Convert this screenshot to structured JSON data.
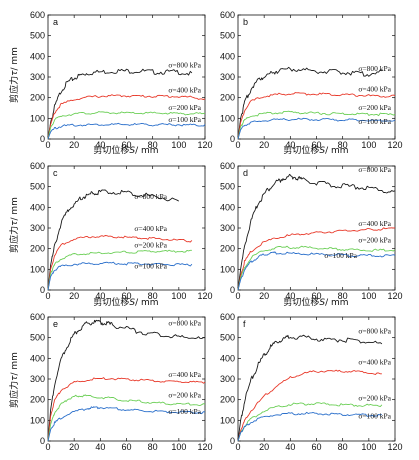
{
  "figure": {
    "ylabel_prefix": "剪应力",
    "ylabel_symbol": "τ",
    "ylabel_unit": "/ mm",
    "xlabel_prefix": "剪切位移",
    "xlabel_symbol": "S",
    "xlabel_unit": "/ mm"
  },
  "colors": {
    "800": "#1a1a1a",
    "400": "#e8392a",
    "200": "#6ccf57",
    "100": "#2a6fcb"
  },
  "chart_data": [
    {
      "type": "line",
      "panel": "a",
      "xlim": [
        0,
        120
      ],
      "ylim": [
        0,
        600
      ],
      "xticks": [
        "0",
        "20",
        "40",
        "60",
        "80",
        "100",
        "120"
      ],
      "yticks": [
        "0",
        "100",
        "200",
        "300",
        "400",
        "500",
        "600"
      ],
      "series": [
        {
          "name": "σ=800 kPa",
          "level": "800",
          "x": [
            0,
            2,
            5,
            10,
            15,
            20,
            25,
            30,
            40,
            50,
            60,
            70,
            80,
            90,
            100,
            110
          ],
          "y": [
            0,
            80,
            160,
            240,
            280,
            300,
            315,
            325,
            330,
            335,
            335,
            335,
            330,
            330,
            330,
            320
          ]
        },
        {
          "name": "σ=400 kPa",
          "level": "400",
          "x": [
            0,
            2,
            5,
            10,
            20,
            30,
            40,
            50,
            60,
            70,
            80,
            90,
            100,
            110,
            120
          ],
          "y": [
            0,
            70,
            130,
            170,
            195,
            205,
            210,
            212,
            212,
            210,
            210,
            210,
            208,
            205,
            195
          ]
        },
        {
          "name": "σ=200 kPa",
          "level": "200",
          "x": [
            0,
            2,
            5,
            10,
            20,
            30,
            40,
            50,
            60,
            70,
            80,
            90,
            100,
            110,
            120
          ],
          "y": [
            0,
            55,
            95,
            115,
            125,
            128,
            130,
            130,
            128,
            128,
            128,
            128,
            126,
            125,
            125
          ]
        },
        {
          "name": "σ=100 kPa",
          "level": "100",
          "x": [
            0,
            2,
            5,
            10,
            20,
            30,
            40,
            50,
            60,
            70,
            80,
            90,
            100,
            110,
            120
          ],
          "y": [
            0,
            35,
            55,
            65,
            70,
            72,
            73,
            73,
            73,
            73,
            72,
            72,
            72,
            70,
            70
          ]
        }
      ],
      "annotations": [
        "σ=800 kPa",
        "σ=400 kPa",
        "σ=200 kPa",
        "σ=100 kPa"
      ]
    },
    {
      "type": "line",
      "panel": "b",
      "xlim": [
        0,
        120
      ],
      "ylim": [
        0,
        600
      ],
      "xticks": [
        "0",
        "20",
        "40",
        "60",
        "80",
        "100",
        "120"
      ],
      "yticks": [
        "0",
        "100",
        "200",
        "300",
        "400",
        "500",
        "600"
      ],
      "series": [
        {
          "name": "σ=800 kPa",
          "level": "800",
          "x": [
            0,
            2,
            5,
            10,
            15,
            20,
            25,
            30,
            40,
            50,
            60,
            70,
            80,
            90,
            100,
            110
          ],
          "y": [
            0,
            100,
            180,
            250,
            290,
            310,
            325,
            335,
            345,
            340,
            335,
            330,
            330,
            325,
            320,
            330
          ]
        },
        {
          "name": "σ=400 kPa",
          "level": "400",
          "x": [
            0,
            2,
            5,
            10,
            20,
            30,
            40,
            50,
            60,
            70,
            80,
            90,
            100,
            110,
            120
          ],
          "y": [
            0,
            80,
            140,
            185,
            210,
            218,
            222,
            222,
            220,
            220,
            218,
            215,
            212,
            210,
            210
          ]
        },
        {
          "name": "σ=200 kPa",
          "level": "200",
          "x": [
            0,
            2,
            5,
            10,
            20,
            30,
            40,
            50,
            60,
            70,
            80,
            90,
            100,
            110,
            120
          ],
          "y": [
            0,
            60,
            95,
            115,
            125,
            130,
            132,
            130,
            128,
            126,
            125,
            124,
            123,
            122,
            120
          ]
        },
        {
          "name": "σ=100 kPa",
          "level": "100",
          "x": [
            0,
            2,
            5,
            10,
            20,
            30,
            40,
            50,
            60,
            70,
            80,
            90,
            100,
            110,
            120
          ],
          "y": [
            0,
            45,
            70,
            82,
            92,
            96,
            98,
            98,
            97,
            96,
            95,
            95,
            94,
            93,
            92
          ]
        }
      ],
      "annotations": [
        "σ=800 kPa",
        "σ=400 kPa",
        "σ=200 kPa",
        "σ=100 kPa"
      ]
    },
    {
      "type": "line",
      "panel": "c",
      "xlim": [
        0,
        120
      ],
      "ylim": [
        0,
        600
      ],
      "xticks": [
        "0",
        "20",
        "40",
        "60",
        "80",
        "100",
        "120"
      ],
      "yticks": [
        "0",
        "100",
        "200",
        "300",
        "400",
        "500",
        "600"
      ],
      "series": [
        {
          "name": "σ=800 kPa",
          "level": "800",
          "x": [
            0,
            2,
            5,
            10,
            15,
            20,
            25,
            30,
            35,
            40,
            50,
            60,
            70,
            80,
            90,
            100
          ],
          "y": [
            0,
            120,
            220,
            330,
            390,
            420,
            450,
            465,
            475,
            480,
            480,
            475,
            470,
            460,
            450,
            430
          ]
        },
        {
          "name": "σ=400 kPa",
          "level": "400",
          "x": [
            0,
            2,
            5,
            10,
            20,
            30,
            40,
            50,
            60,
            70,
            80,
            90,
            100,
            110
          ],
          "y": [
            0,
            100,
            170,
            220,
            250,
            260,
            262,
            262,
            258,
            255,
            252,
            248,
            242,
            240
          ]
        },
        {
          "name": "σ=200 kPa",
          "level": "200",
          "x": [
            0,
            2,
            5,
            10,
            20,
            30,
            40,
            50,
            60,
            70,
            80,
            90,
            100,
            110
          ],
          "y": [
            0,
            80,
            125,
            155,
            175,
            180,
            182,
            185,
            185,
            188,
            190,
            190,
            190,
            192
          ]
        },
        {
          "name": "σ=100 kPa",
          "level": "100",
          "x": [
            0,
            2,
            5,
            10,
            20,
            30,
            40,
            50,
            60,
            70,
            80,
            90,
            100,
            110
          ],
          "y": [
            0,
            65,
            100,
            118,
            128,
            130,
            132,
            132,
            130,
            130,
            128,
            128,
            126,
            125
          ]
        }
      ],
      "annotations": [
        "σ=800 kPa",
        "σ=400 kPa",
        "σ=200 kPa",
        "σ=100 kPa"
      ]
    },
    {
      "type": "line",
      "panel": "d",
      "xlim": [
        0,
        120
      ],
      "ylim": [
        0,
        600
      ],
      "xticks": [
        "0",
        "20",
        "40",
        "60",
        "80",
        "100",
        "120"
      ],
      "yticks": [
        "0",
        "100",
        "200",
        "300",
        "400",
        "500",
        "600"
      ],
      "series": [
        {
          "name": "σ=800 kPa",
          "level": "800",
          "x": [
            0,
            2,
            5,
            10,
            15,
            20,
            25,
            30,
            35,
            40,
            45,
            50,
            60,
            70,
            80,
            90,
            100,
            110,
            120
          ],
          "y": [
            0,
            100,
            220,
            340,
            420,
            470,
            505,
            530,
            548,
            555,
            550,
            540,
            525,
            515,
            510,
            505,
            500,
            490,
            480
          ]
        },
        {
          "name": "σ=400 kPa",
          "level": "400",
          "x": [
            0,
            2,
            5,
            10,
            20,
            30,
            40,
            50,
            60,
            70,
            80,
            90,
            100,
            110,
            120
          ],
          "y": [
            0,
            70,
            140,
            190,
            235,
            255,
            268,
            275,
            280,
            285,
            290,
            292,
            295,
            298,
            300
          ]
        },
        {
          "name": "σ=200 kPa",
          "level": "200",
          "x": [
            0,
            2,
            5,
            10,
            20,
            30,
            40,
            50,
            60,
            70,
            80,
            90,
            100,
            110,
            120
          ],
          "y": [
            0,
            60,
            110,
            160,
            195,
            208,
            210,
            210,
            205,
            202,
            200,
            198,
            195,
            195,
            195
          ]
        },
        {
          "name": "σ=100 kPa",
          "level": "100",
          "x": [
            0,
            2,
            5,
            10,
            15,
            20,
            25,
            30,
            40,
            50,
            60,
            70,
            80,
            90,
            100,
            110,
            120
          ],
          "y": [
            0,
            50,
            100,
            140,
            160,
            175,
            182,
            182,
            180,
            178,
            175,
            175,
            172,
            170,
            170,
            168,
            168
          ]
        }
      ],
      "annotations": [
        "σ=800 kPa",
        "σ=400 kPa",
        "σ=200 kPa",
        "σ=100 kPa"
      ]
    },
    {
      "type": "line",
      "panel": "e",
      "xlim": [
        0,
        120
      ],
      "ylim": [
        0,
        600
      ],
      "xticks": [
        "0",
        "20",
        "40",
        "60",
        "80",
        "100",
        "120"
      ],
      "yticks": [
        "0",
        "100",
        "200",
        "300",
        "400",
        "500",
        "600"
      ],
      "series": [
        {
          "name": "σ=800 kPa",
          "level": "800",
          "x": [
            0,
            2,
            5,
            10,
            15,
            20,
            25,
            30,
            35,
            40,
            45,
            50,
            60,
            70,
            80,
            90,
            100,
            110,
            120
          ],
          "y": [
            0,
            150,
            280,
            400,
            470,
            520,
            555,
            575,
            580,
            580,
            575,
            565,
            550,
            535,
            525,
            515,
            510,
            505,
            500
          ]
        },
        {
          "name": "σ=400 kPa",
          "level": "400",
          "x": [
            0,
            2,
            5,
            10,
            20,
            30,
            40,
            50,
            60,
            70,
            80,
            90,
            100,
            110,
            120
          ],
          "y": [
            0,
            120,
            200,
            250,
            285,
            300,
            305,
            305,
            300,
            298,
            295,
            292,
            290,
            288,
            285
          ]
        },
        {
          "name": "σ=200 kPa",
          "level": "200",
          "x": [
            0,
            2,
            5,
            10,
            15,
            20,
            25,
            30,
            40,
            50,
            60,
            70,
            80,
            90,
            100,
            110,
            120
          ],
          "y": [
            0,
            80,
            140,
            180,
            205,
            218,
            222,
            222,
            215,
            208,
            200,
            195,
            188,
            185,
            182,
            180,
            178
          ]
        },
        {
          "name": "σ=100 kPa",
          "level": "100",
          "x": [
            0,
            2,
            5,
            10,
            20,
            30,
            35,
            40,
            50,
            60,
            70,
            80,
            90,
            100,
            110,
            120
          ],
          "y": [
            0,
            55,
            90,
            115,
            145,
            160,
            165,
            165,
            160,
            155,
            150,
            148,
            145,
            143,
            142,
            140
          ]
        }
      ],
      "annotations": [
        "σ=800 kPa",
        "σ=400 kPa",
        "σ=200 kPa",
        "σ=100 kPa"
      ]
    },
    {
      "type": "line",
      "panel": "f",
      "xlim": [
        0,
        120
      ],
      "ylim": [
        0,
        600
      ],
      "xticks": [
        "0",
        "20",
        "40",
        "60",
        "80",
        "100",
        "120"
      ],
      "yticks": [
        "0",
        "100",
        "200",
        "300",
        "400",
        "500",
        "600"
      ],
      "series": [
        {
          "name": "σ=800 kPa",
          "level": "800",
          "x": [
            0,
            2,
            5,
            10,
            15,
            20,
            25,
            30,
            35,
            40,
            50,
            60,
            70,
            80,
            90,
            100,
            110
          ],
          "y": [
            0,
            100,
            200,
            300,
            370,
            420,
            460,
            485,
            500,
            510,
            510,
            500,
            495,
            495,
            490,
            485,
            470
          ]
        },
        {
          "name": "σ=400 kPa",
          "level": "400",
          "x": [
            0,
            2,
            5,
            10,
            20,
            30,
            40,
            50,
            60,
            70,
            80,
            90,
            100,
            110
          ],
          "y": [
            0,
            50,
            100,
            150,
            220,
            270,
            310,
            330,
            340,
            342,
            340,
            338,
            335,
            325
          ]
        },
        {
          "name": "σ=200 kPa",
          "level": "200",
          "x": [
            0,
            2,
            5,
            10,
            20,
            30,
            40,
            50,
            60,
            70,
            80,
            90,
            100,
            110
          ],
          "y": [
            0,
            40,
            75,
            110,
            150,
            170,
            180,
            183,
            183,
            180,
            178,
            176,
            175,
            175
          ]
        },
        {
          "name": "σ=100 kPa",
          "level": "100",
          "x": [
            0,
            2,
            5,
            10,
            20,
            30,
            40,
            50,
            60,
            70,
            80,
            90,
            100,
            110
          ],
          "y": [
            0,
            40,
            70,
            95,
            120,
            130,
            135,
            136,
            135,
            134,
            132,
            130,
            128,
            128
          ]
        }
      ],
      "annotations": [
        "σ=800 kPa",
        "σ=400 kPa",
        "σ=200 kPa",
        "σ=100 kPa"
      ]
    }
  ]
}
